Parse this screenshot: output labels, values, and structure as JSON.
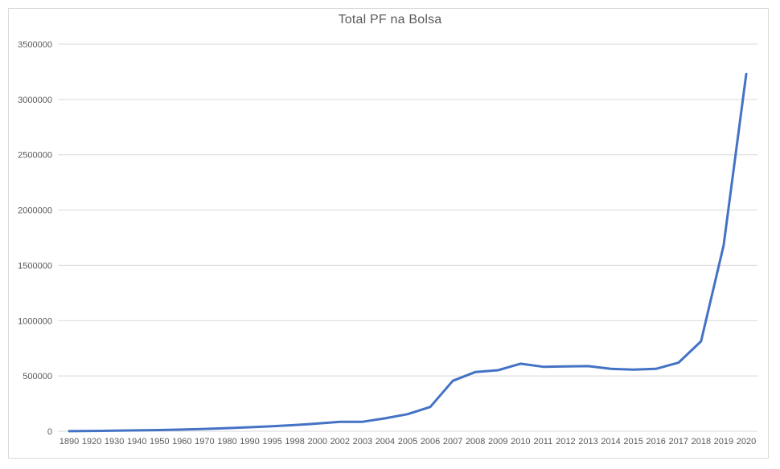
{
  "chart_data": {
    "type": "line",
    "title": "Total PF na Bolsa",
    "categories": [
      "1890",
      "1920",
      "1930",
      "1940",
      "1950",
      "1960",
      "1970",
      "1980",
      "1990",
      "1995",
      "1998",
      "2000",
      "2002",
      "2003",
      "2004",
      "2005",
      "2006",
      "2007",
      "2008",
      "2009",
      "2010",
      "2011",
      "2012",
      "2013",
      "2014",
      "2015",
      "2016",
      "2017",
      "2018",
      "2019",
      "2020"
    ],
    "series": [
      {
        "values": [
          1000,
          3000,
          5000,
          8000,
          11000,
          15000,
          21000,
          28000,
          36000,
          46000,
          56000,
          70000,
          85000,
          86000,
          117000,
          155000,
          220000,
          456000,
          536000,
          552000,
          611000,
          583000,
          587000,
          589000,
          564000,
          557000,
          564000,
          620000,
          813000,
          1681000,
          3230000
        ]
      }
    ],
    "xlabel": "",
    "ylabel": "",
    "ylim": [
      0,
      3500000
    ],
    "yticks": [
      0,
      500000,
      1000000,
      1500000,
      2000000,
      2500000,
      3000000,
      3500000
    ],
    "grid": "horizontal",
    "legend": "none",
    "colors": {
      "line": "#4472C4",
      "gridline": "#D9D9D9",
      "tick_text": "#595959",
      "title_text": "#595959",
      "chart_border": "#D9D9D9",
      "background": "#FFFFFF"
    }
  }
}
